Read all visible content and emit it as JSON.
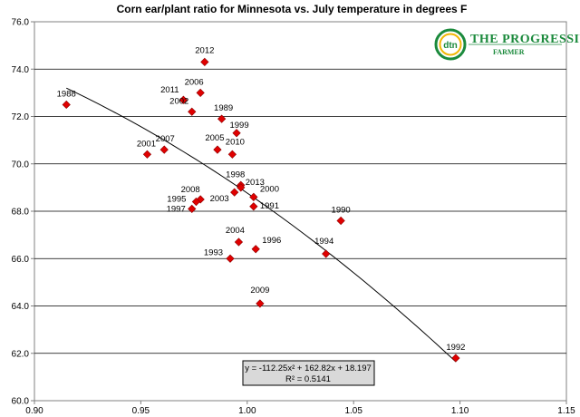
{
  "chart_data": {
    "type": "scatter",
    "title": "Corn ear/plant ratio for Minnesota vs. July temperature in degrees F",
    "xlabel": "",
    "ylabel": "",
    "xlim": [
      0.9,
      1.15
    ],
    "ylim": [
      60.0,
      76.0
    ],
    "x_ticks": [
      "0.90",
      "0.95",
      "1.00",
      "1.05",
      "1.10",
      "1.15"
    ],
    "y_ticks": [
      "60.0",
      "62.0",
      "64.0",
      "66.0",
      "68.0",
      "70.0",
      "72.0",
      "74.0",
      "76.0"
    ],
    "grid": "horizontal",
    "marker_color": "#e00000",
    "points": [
      {
        "label": "1988",
        "x": 0.915,
        "y": 72.5
      },
      {
        "label": "2012",
        "x": 0.98,
        "y": 74.3
      },
      {
        "label": "2006",
        "x": 0.978,
        "y": 73.0
      },
      {
        "label": "2011",
        "x": 0.97,
        "y": 72.7
      },
      {
        "label": "2002",
        "x": 0.974,
        "y": 72.2
      },
      {
        "label": "1989",
        "x": 0.988,
        "y": 71.9
      },
      {
        "label": "1999",
        "x": 0.995,
        "y": 71.3
      },
      {
        "label": "2001",
        "x": 0.953,
        "y": 70.4
      },
      {
        "label": "2007",
        "x": 0.961,
        "y": 70.6
      },
      {
        "label": "2005",
        "x": 0.986,
        "y": 70.6
      },
      {
        "label": "2010",
        "x": 0.993,
        "y": 70.4
      },
      {
        "label": "1998",
        "x": 0.997,
        "y": 69.1
      },
      {
        "label": "2013",
        "x": 0.997,
        "y": 69.0
      },
      {
        "label": "2000",
        "x": 1.003,
        "y": 68.6
      },
      {
        "label": "2003",
        "x": 0.994,
        "y": 68.8
      },
      {
        "label": "1991",
        "x": 1.003,
        "y": 68.2
      },
      {
        "label": "2008",
        "x": 0.978,
        "y": 68.5
      },
      {
        "label": "1995",
        "x": 0.976,
        "y": 68.4
      },
      {
        "label": "1997",
        "x": 0.974,
        "y": 68.1
      },
      {
        "label": "1990",
        "x": 1.044,
        "y": 67.6
      },
      {
        "label": "2004",
        "x": 0.996,
        "y": 66.7
      },
      {
        "label": "1996",
        "x": 1.004,
        "y": 66.4
      },
      {
        "label": "1994",
        "x": 1.037,
        "y": 66.2
      },
      {
        "label": "1993",
        "x": 0.992,
        "y": 66.0
      },
      {
        "label": "2009",
        "x": 1.006,
        "y": 64.1
      },
      {
        "label": "1992",
        "x": 1.098,
        "y": 61.8
      }
    ],
    "trendline": {
      "type": "polynomial",
      "a": -112.25,
      "b": 162.82,
      "c": 18.197,
      "x_range": [
        0.915,
        1.098
      ],
      "equation": "y = -112.25x² + 162.82x + 18.197",
      "r_squared": "R² = 0.5141"
    }
  },
  "logo": {
    "mark": "dtn",
    "line1": "THE PROGRESSIVE",
    "line2": "FARMER"
  },
  "colors": {
    "logo": "#1b8a3c",
    "eq_box_fill": "#d9d9d9",
    "marker": "#e00000"
  }
}
